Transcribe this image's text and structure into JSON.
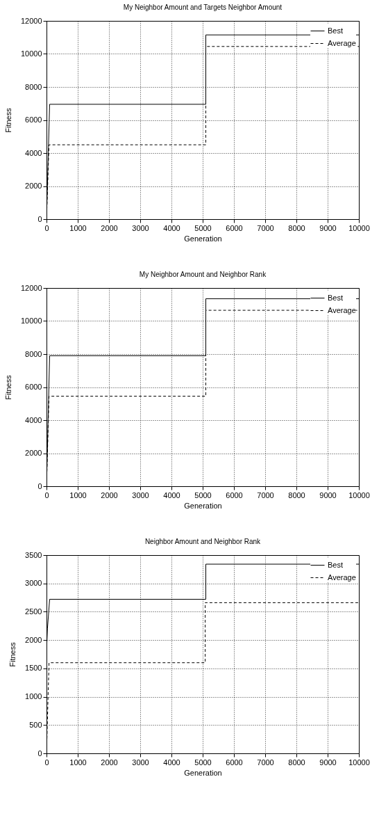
{
  "chart_data": [
    {
      "type": "line",
      "title": "My Neighbor Amount and Targets Neighbor Amount",
      "xlabel": "Generation",
      "ylabel": "Fitness",
      "xlim": [
        0,
        10000
      ],
      "xticks": [
        0,
        1000,
        2000,
        3000,
        4000,
        5000,
        6000,
        7000,
        8000,
        9000,
        10000
      ],
      "ylim": [
        0,
        12000
      ],
      "yticks": [
        0,
        2000,
        4000,
        6000,
        8000,
        10000,
        12000
      ],
      "grid": true,
      "legend": "top right",
      "x": [
        0,
        100,
        5100,
        5100,
        10000
      ],
      "series": [
        {
          "name": "Best",
          "color": "#000000",
          "line_style": "solid",
          "values": [
            0,
            6950,
            6950,
            11150,
            11150
          ]
        },
        {
          "name": "Average",
          "color": "#000000",
          "line_style": "dashed",
          "x": [
            0,
            80,
            5100,
            5100,
            10000
          ],
          "values": [
            0,
            4500,
            4500,
            10450,
            10450
          ]
        }
      ]
    },
    {
      "type": "line",
      "title": "My Neighbor Amount and Neighbor Rank",
      "xlabel": "Generation",
      "ylabel": "Fitness",
      "xlim": [
        0,
        10000
      ],
      "xticks": [
        0,
        1000,
        2000,
        3000,
        4000,
        5000,
        6000,
        7000,
        8000,
        9000,
        10000
      ],
      "ylim": [
        0,
        12000
      ],
      "yticks": [
        0,
        2000,
        4000,
        6000,
        8000,
        10000,
        12000
      ],
      "grid": true,
      "legend": "top right",
      "x": [
        0,
        100,
        5100,
        5100,
        10000
      ],
      "series": [
        {
          "name": "Best",
          "color": "#000000",
          "line_style": "solid",
          "values": [
            0,
            7900,
            7900,
            11350,
            11350
          ]
        },
        {
          "name": "Average",
          "color": "#000000",
          "line_style": "dashed",
          "x": [
            0,
            80,
            5100,
            5100,
            10000
          ],
          "values": [
            0,
            5450,
            5450,
            10650,
            10650
          ]
        }
      ]
    },
    {
      "type": "line",
      "title": "Neighbor Amount and Neighbor Rank",
      "xlabel": "Generation",
      "ylabel": "Fitness",
      "xlim": [
        0,
        10000
      ],
      "xticks": [
        0,
        1000,
        2000,
        3000,
        4000,
        5000,
        6000,
        7000,
        8000,
        9000,
        10000
      ],
      "ylim": [
        0,
        3500
      ],
      "yticks": [
        0,
        500,
        1000,
        1500,
        2000,
        2500,
        3000,
        3500
      ],
      "grid": true,
      "legend": "top right",
      "x": [
        0,
        30,
        100,
        5100,
        5100,
        10000
      ],
      "series": [
        {
          "name": "Best",
          "color": "#000000",
          "line_style": "solid",
          "values": [
            1800,
            2200,
            2720,
            2720,
            3340,
            3340
          ]
        },
        {
          "name": "Average",
          "color": "#000000",
          "line_style": "dashed",
          "x": [
            0,
            80,
            5080,
            5080,
            10000
          ],
          "values": [
            0,
            1600,
            1600,
            2660,
            2660
          ]
        }
      ]
    }
  ]
}
